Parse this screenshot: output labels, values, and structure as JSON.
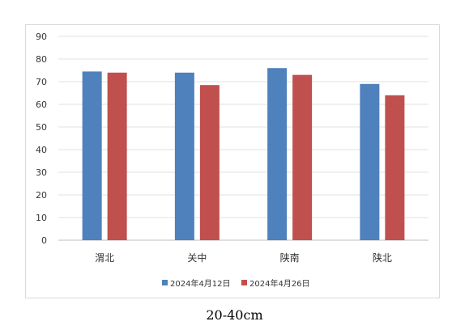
{
  "chart_data": {
    "type": "bar",
    "categories": [
      "渭北",
      "关中",
      "陕南",
      "陕北"
    ],
    "series": [
      {
        "name": "2024年4月12日",
        "color": "#4f81bd",
        "values": [
          74.5,
          74,
          76,
          69
        ]
      },
      {
        "name": "2024年4月26日",
        "color": "#c0504d",
        "values": [
          74,
          68.5,
          73,
          64
        ]
      }
    ],
    "ylim": [
      0,
      90
    ],
    "yticks": [
      0,
      10,
      20,
      30,
      40,
      50,
      60,
      70,
      80,
      90
    ],
    "grid": true,
    "legend": "bottom",
    "title": "",
    "xlabel": "",
    "ylabel": ""
  },
  "caption": "20-40cm"
}
